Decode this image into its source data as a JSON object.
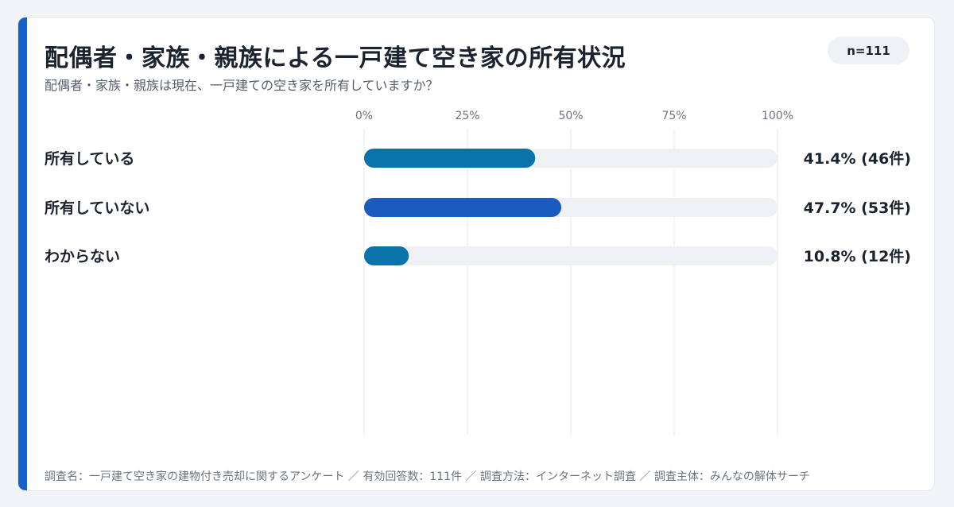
{
  "chart_data": {
    "type": "bar",
    "orientation": "horizontal",
    "title": "配偶者・家族・親族による一戸建て空き家の所有状況",
    "subtitle": "配偶者・家族・親族は現在、一戸建ての空き家を所有していますか？",
    "sample_size_label": "n=111",
    "categories": [
      "所有している",
      "所有していない",
      "わからない"
    ],
    "values": [
      41.4,
      47.7,
      10.8
    ],
    "counts": [
      46,
      53,
      12
    ],
    "value_labels": [
      "41.4% (46件)",
      "47.7% (53件)",
      "10.8% (12件)"
    ],
    "x_ticks": [
      0,
      25,
      50,
      75,
      100
    ],
    "x_tick_labels": [
      "0%",
      "25%",
      "50%",
      "75%",
      "100%"
    ],
    "xlim": [
      0,
      100
    ],
    "grid": true,
    "bar_colors": [
      "#0a74aa",
      "#1a5bc0",
      "#0a74aa"
    ],
    "track_color": "#eef0f4",
    "footnote": "調査名：一戸建て空き家の建物付き売却に関するアンケート ／ 有効回答数：111件 ／ 調査方法：インターネット調査 ／ 調査主体：みんなの解体サーチ"
  },
  "colors": {
    "accent": "#1560c9",
    "grid": "#e6e8ee",
    "text": "#1c2330",
    "muted": "#555e6c"
  }
}
